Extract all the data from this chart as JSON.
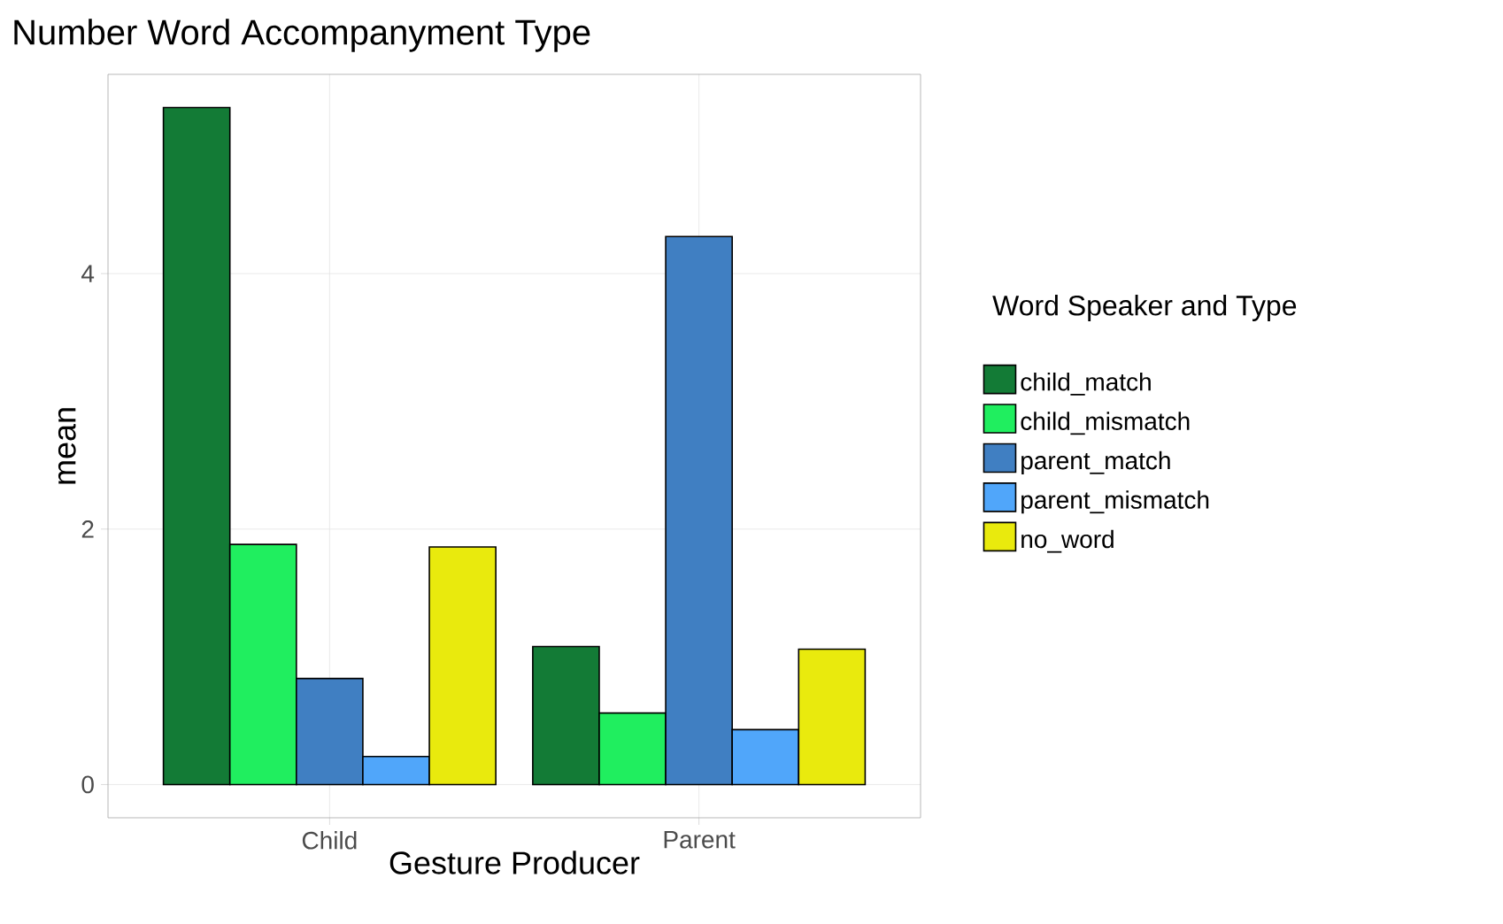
{
  "chart_data": {
    "type": "bar",
    "title": "Number Word Accompanyment Type",
    "xlabel": "Gesture Producer",
    "ylabel": "mean",
    "legend_title": "Word Speaker and Type",
    "categories": [
      "Child",
      "Parent"
    ],
    "series": [
      {
        "name": "child_match",
        "color": "#137b36",
        "values": [
          5.3,
          1.08
        ]
      },
      {
        "name": "child_mismatch",
        "color": "#20ee5f",
        "values": [
          1.88,
          0.56
        ]
      },
      {
        "name": "parent_match",
        "color": "#407fc2",
        "values": [
          0.83,
          4.29
        ]
      },
      {
        "name": "parent_mismatch",
        "color": "#50a6fa",
        "values": [
          0.22,
          0.43
        ]
      },
      {
        "name": "no_word",
        "color": "#e9ea0d",
        "values": [
          1.86,
          1.06
        ]
      }
    ],
    "ylim": [
      -0.26,
      5.56
    ],
    "yticks": [
      0,
      2,
      4
    ],
    "grid": true,
    "legend": "right"
  }
}
